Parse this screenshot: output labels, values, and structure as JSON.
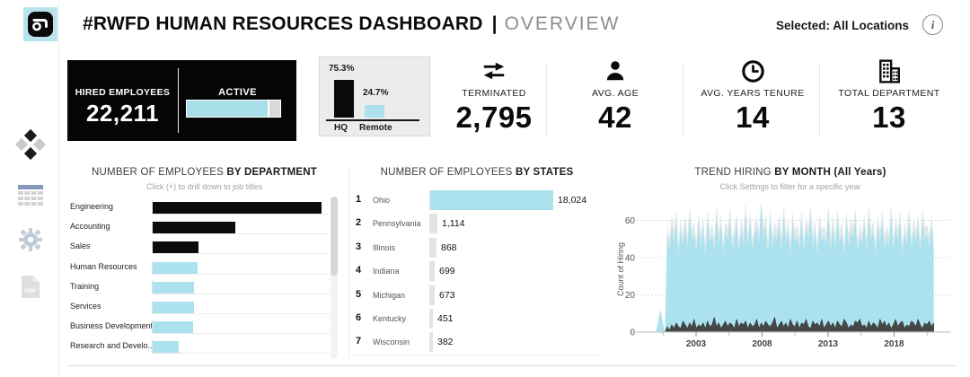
{
  "header": {
    "title": "#RWFD HUMAN RESOURCES DASHBOARD",
    "separator": "|",
    "subtitle": "OVERVIEW",
    "selected_label": "Selected:",
    "selected_value": "All Locations",
    "info_glyph": "i"
  },
  "sidebar": {
    "icons": [
      "workbook-logo-icon",
      "diamond-grid-icon",
      "data-grid-icon",
      "settings-gear-icon",
      "export-pdf-icon"
    ],
    "pdf_label": "PDF"
  },
  "colors": {
    "accent_blue": "#ace2ee",
    "bar_black": "#0b0b0b",
    "bar_gray": "#e3e3e3",
    "trend_back": "#e0e8ea",
    "trend_dark": "#474747",
    "grid_dotted": "#cfcfcf",
    "axis_gray": "#c8c8c8"
  },
  "kpis": {
    "hired": {
      "label": "HIRED EMPLOYEES",
      "value": "22,211",
      "active_label": "ACTIVE",
      "active_pct": 87
    },
    "location_split": {
      "hq": {
        "label": "HQ",
        "pct_label": "75.3%",
        "pct": 75.3
      },
      "remote": {
        "label": "Remote",
        "pct_label": "24.7%",
        "pct": 24.7
      }
    },
    "terminated": {
      "label": "TERMINATED",
      "value": "2,795"
    },
    "avg_age": {
      "label": "AVG. AGE",
      "value": "42"
    },
    "avg_tenure": {
      "label": "AVG. YEARS TENURE",
      "value": "14"
    },
    "total_department": {
      "label": "TOTAL DEPARTMENT",
      "value": "13"
    }
  },
  "chart_data": [
    {
      "type": "bar",
      "orientation": "horizontal",
      "title_normal": "NUMBER OF EMPLOYEES ",
      "title_bold": "BY DEPARTMENT",
      "subtitle": "Click (+) to drill down to job titles",
      "categories": [
        "Engineering",
        "Accounting",
        "Sales",
        "Human Resources",
        "Training",
        "Services",
        "Business Development",
        "Research and Develo.."
      ],
      "values_pct_of_max": [
        100,
        49,
        27,
        26.5,
        24.5,
        24.5,
        24,
        15.5
      ],
      "bar_colors": [
        "#0b0b0b",
        "#0b0b0b",
        "#0b0b0b",
        "#ace2ee",
        "#ace2ee",
        "#ace2ee",
        "#ace2ee",
        "#ace2ee"
      ],
      "note": "no numeric labels shown; vertical scrollbar indicates more rows"
    },
    {
      "type": "bar",
      "orientation": "horizontal",
      "title_normal": "NUMBER OF EMPLOYEES ",
      "title_bold": "BY STATES",
      "rows": [
        {
          "rank": "1",
          "state": "Ohio",
          "value": "18,024",
          "value_num": 18024,
          "highlight": true
        },
        {
          "rank": "2",
          "state": "Pennsylvania",
          "value": "1,114",
          "value_num": 1114,
          "highlight": false
        },
        {
          "rank": "3",
          "state": "Illinois",
          "value": "868",
          "value_num": 868,
          "highlight": false
        },
        {
          "rank": "4",
          "state": "Indiana",
          "value": "699",
          "value_num": 699,
          "highlight": false
        },
        {
          "rank": "5",
          "state": "Michigan",
          "value": "673",
          "value_num": 673,
          "highlight": false
        },
        {
          "rank": "6",
          "state": "Kentucky",
          "value": "451",
          "value_num": 451,
          "highlight": false
        },
        {
          "rank": "7",
          "state": "Wisconsin",
          "value": "382",
          "value_num": 382,
          "highlight": false
        }
      ]
    },
    {
      "type": "area",
      "title_normal": "TREND HIRING ",
      "title_bold": "BY MONTH (All Years)",
      "subtitle": "Click Settings to filter for a specific year",
      "ylabel": "Count of Hiring",
      "ylim": [
        0,
        70
      ],
      "yticks": [
        0,
        20,
        40,
        60
      ],
      "xticks": [
        2003,
        2008,
        2013,
        2018
      ],
      "x_range": [
        1999.8,
        2021.0
      ],
      "grid": "dotted-horizontal",
      "peak_halo_offset": 6,
      "series": [
        {
          "name": "hired",
          "color": "#ace2ee",
          "values": [
            0,
            0,
            6,
            12,
            5,
            0,
            52,
            44,
            57,
            48,
            60,
            42,
            55,
            47,
            58,
            45,
            62,
            49,
            53,
            43,
            59,
            46,
            56,
            41,
            60,
            48,
            52,
            44,
            63,
            47,
            57,
            42,
            54,
            49,
            61,
            45,
            50,
            58,
            43,
            55,
            47,
            64,
            46,
            59,
            44,
            52,
            56,
            48,
            70,
            50,
            57,
            42,
            61,
            46,
            53,
            49,
            58,
            44,
            63,
            47,
            55,
            41,
            59,
            48,
            52,
            45,
            60,
            43,
            56,
            50,
            62,
            46,
            54,
            42,
            58,
            49,
            51,
            47,
            63,
            44,
            57,
            45,
            60,
            48,
            53,
            41,
            59,
            46,
            55,
            50,
            61,
            43,
            52,
            47,
            58,
            44,
            62,
            49,
            54,
            42,
            57,
            48,
            60,
            45,
            51,
            46,
            63,
            44,
            56,
            49,
            59,
            42,
            53,
            47,
            61,
            45,
            55,
            48,
            58,
            43,
            60,
            50,
            52,
            46,
            57,
            44
          ]
        },
        {
          "name": "terminated",
          "color": "#474747",
          "values": [
            0,
            0,
            0,
            0,
            0,
            0,
            3,
            1,
            4,
            2,
            5,
            3,
            2,
            6,
            4,
            2,
            5,
            3,
            7,
            2,
            4,
            3,
            5,
            2,
            6,
            3,
            4,
            8,
            3,
            5,
            2,
            4,
            6,
            3,
            5,
            4,
            2,
            7,
            3,
            5,
            4,
            6,
            2,
            5,
            3,
            4,
            7,
            2,
            5,
            3,
            6,
            4,
            3,
            5,
            8,
            2,
            4,
            6,
            3,
            5,
            2,
            7,
            4,
            3,
            6,
            2,
            5,
            4,
            7,
            3,
            2,
            6,
            4,
            5,
            3,
            7,
            2,
            4,
            6,
            3,
            5,
            2,
            6,
            4,
            3,
            7,
            5,
            2,
            4,
            3,
            6,
            5,
            7,
            3,
            4,
            2,
            6,
            3,
            5,
            4,
            2,
            7,
            4,
            6,
            3,
            5,
            2,
            4,
            7,
            3,
            5,
            6,
            2,
            4,
            3,
            6,
            5,
            3,
            7,
            4,
            2,
            5,
            4,
            6,
            3,
            5
          ]
        }
      ]
    }
  ]
}
